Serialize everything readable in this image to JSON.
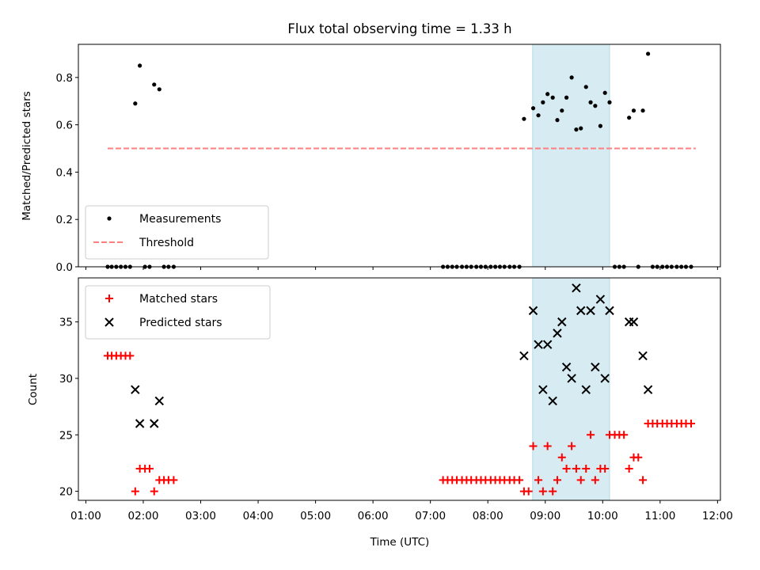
{
  "chart_data": [
    {
      "type": "scatter",
      "title": "Flux total observing time = 1.33 h",
      "ylabel": "Matched/Predicted stars",
      "xlabel": "",
      "x_unit": "hours UTC",
      "xlim": [
        0.87,
        12.05
      ],
      "ylim": [
        0,
        0.94
      ],
      "yticks": [
        0.0,
        0.2,
        0.4,
        0.6,
        0.8
      ],
      "ytick_labels": [
        "0.0",
        "0.2",
        "0.4",
        "0.6",
        "0.8"
      ],
      "grid": false,
      "legend_position": "lower-left",
      "highlight_span": {
        "x0": 8.78,
        "x1": 10.12,
        "color": "#add8e6"
      },
      "threshold": {
        "name": "Threshold",
        "y": 0.5,
        "x0": 1.38,
        "x1": 11.62,
        "color": "#ff7f7f",
        "style": "dashed"
      },
      "series": [
        {
          "name": "Measurements",
          "marker": "dot",
          "color": "#000000",
          "points": [
            [
              1.38,
              0
            ],
            [
              1.45,
              0
            ],
            [
              1.53,
              0
            ],
            [
              1.61,
              0
            ],
            [
              1.69,
              0
            ],
            [
              1.77,
              0
            ],
            [
              1.86,
              0.69
            ],
            [
              1.94,
              0.85
            ],
            [
              2.03,
              0
            ],
            [
              2.11,
              0
            ],
            [
              2.19,
              0.77
            ],
            [
              2.28,
              0.75
            ],
            [
              2.36,
              0
            ],
            [
              2.44,
              0
            ],
            [
              2.53,
              0
            ],
            [
              7.22,
              0
            ],
            [
              7.3,
              0
            ],
            [
              7.38,
              0
            ],
            [
              7.46,
              0
            ],
            [
              7.55,
              0
            ],
            [
              7.63,
              0
            ],
            [
              7.71,
              0
            ],
            [
              7.8,
              0
            ],
            [
              7.88,
              0
            ],
            [
              7.96,
              0
            ],
            [
              8.05,
              0
            ],
            [
              8.13,
              0
            ],
            [
              8.21,
              0
            ],
            [
              8.29,
              0
            ],
            [
              8.38,
              0
            ],
            [
              8.46,
              0
            ],
            [
              8.55,
              0
            ],
            [
              8.63,
              0.625
            ],
            [
              8.79,
              0.67
            ],
            [
              8.88,
              0.64
            ],
            [
              8.96,
              0.695
            ],
            [
              9.04,
              0.73
            ],
            [
              9.13,
              0.715
            ],
            [
              9.21,
              0.62
            ],
            [
              9.29,
              0.66
            ],
            [
              9.37,
              0.715
            ],
            [
              9.46,
              0.8
            ],
            [
              9.54,
              0.58
            ],
            [
              9.62,
              0.585
            ],
            [
              9.71,
              0.76
            ],
            [
              9.79,
              0.695
            ],
            [
              9.87,
              0.68
            ],
            [
              9.96,
              0.595
            ],
            [
              10.04,
              0.735
            ],
            [
              10.12,
              0.695
            ],
            [
              10.21,
              0
            ],
            [
              10.29,
              0
            ],
            [
              10.37,
              0
            ],
            [
              10.46,
              0.63
            ],
            [
              10.54,
              0.66
            ],
            [
              10.62,
              0
            ],
            [
              10.7,
              0.66
            ],
            [
              10.79,
              0.9
            ],
            [
              10.87,
              0
            ],
            [
              10.95,
              0
            ],
            [
              11.04,
              0
            ],
            [
              11.12,
              0
            ],
            [
              11.2,
              0
            ],
            [
              11.29,
              0
            ],
            [
              11.37,
              0
            ],
            [
              11.45,
              0
            ],
            [
              11.54,
              0
            ]
          ]
        }
      ]
    },
    {
      "type": "scatter",
      "title": "",
      "ylabel": "Count",
      "xlabel": "Time (UTC)",
      "x_unit": "hours UTC",
      "xlim": [
        0.87,
        12.05
      ],
      "ylim": [
        19.2,
        38.9
      ],
      "yticks": [
        20,
        25,
        30,
        35
      ],
      "ytick_labels": [
        "20",
        "25",
        "30",
        "35"
      ],
      "xticks": [
        1,
        2,
        3,
        4,
        5,
        6,
        7,
        8,
        9,
        10,
        11,
        12
      ],
      "xtick_labels": [
        "01:00",
        "02:00",
        "03:00",
        "04:00",
        "05:00",
        "06:00",
        "07:00",
        "08:00",
        "09:00",
        "10:00",
        "11:00",
        "12:00"
      ],
      "grid": false,
      "legend_position": "upper-left",
      "highlight_span": {
        "x0": 8.78,
        "x1": 10.12,
        "color": "#add8e6"
      },
      "series": [
        {
          "name": "Matched stars",
          "marker": "plus",
          "color": "#ff0000",
          "points": [
            [
              1.38,
              32
            ],
            [
              1.45,
              32
            ],
            [
              1.53,
              32
            ],
            [
              1.61,
              32
            ],
            [
              1.69,
              32
            ],
            [
              1.77,
              32
            ],
            [
              1.86,
              20
            ],
            [
              1.94,
              22
            ],
            [
              2.03,
              22
            ],
            [
              2.11,
              22
            ],
            [
              2.19,
              20
            ],
            [
              2.28,
              21
            ],
            [
              2.36,
              21
            ],
            [
              2.44,
              21
            ],
            [
              2.53,
              21
            ],
            [
              7.22,
              21
            ],
            [
              7.3,
              21
            ],
            [
              7.38,
              21
            ],
            [
              7.46,
              21
            ],
            [
              7.55,
              21
            ],
            [
              7.63,
              21
            ],
            [
              7.71,
              21
            ],
            [
              7.8,
              21
            ],
            [
              7.88,
              21
            ],
            [
              7.96,
              21
            ],
            [
              8.05,
              21
            ],
            [
              8.13,
              21
            ],
            [
              8.21,
              21
            ],
            [
              8.29,
              21
            ],
            [
              8.38,
              21
            ],
            [
              8.46,
              21
            ],
            [
              8.55,
              21
            ],
            [
              8.63,
              20
            ],
            [
              8.71,
              20
            ],
            [
              8.79,
              24
            ],
            [
              8.88,
              21
            ],
            [
              8.96,
              20
            ],
            [
              9.04,
              24
            ],
            [
              9.13,
              20
            ],
            [
              9.21,
              21
            ],
            [
              9.29,
              23
            ],
            [
              9.37,
              22
            ],
            [
              9.46,
              24
            ],
            [
              9.54,
              22
            ],
            [
              9.62,
              21
            ],
            [
              9.71,
              22
            ],
            [
              9.79,
              25
            ],
            [
              9.87,
              21
            ],
            [
              9.96,
              22
            ],
            [
              10.04,
              22
            ],
            [
              10.12,
              25
            ],
            [
              10.21,
              25
            ],
            [
              10.29,
              25
            ],
            [
              10.37,
              25
            ],
            [
              10.46,
              22
            ],
            [
              10.54,
              23
            ],
            [
              10.62,
              23
            ],
            [
              10.7,
              21
            ],
            [
              10.79,
              26
            ],
            [
              10.87,
              26
            ],
            [
              10.95,
              26
            ],
            [
              11.04,
              26
            ],
            [
              11.12,
              26
            ],
            [
              11.2,
              26
            ],
            [
              11.29,
              26
            ],
            [
              11.37,
              26
            ],
            [
              11.45,
              26
            ],
            [
              11.54,
              26
            ]
          ]
        },
        {
          "name": "Predicted stars",
          "marker": "x",
          "color": "#000000",
          "points": [
            [
              1.86,
              29
            ],
            [
              1.94,
              26
            ],
            [
              2.19,
              26
            ],
            [
              2.28,
              28
            ],
            [
              8.63,
              32
            ],
            [
              8.79,
              36
            ],
            [
              8.88,
              33
            ],
            [
              8.96,
              29
            ],
            [
              9.04,
              33
            ],
            [
              9.13,
              28
            ],
            [
              9.21,
              34
            ],
            [
              9.29,
              35
            ],
            [
              9.37,
              31
            ],
            [
              9.46,
              30
            ],
            [
              9.54,
              38
            ],
            [
              9.62,
              36
            ],
            [
              9.71,
              29
            ],
            [
              9.79,
              36
            ],
            [
              9.87,
              31
            ],
            [
              9.96,
              37
            ],
            [
              10.04,
              30
            ],
            [
              10.12,
              36
            ],
            [
              10.46,
              35
            ],
            [
              10.54,
              35
            ],
            [
              10.7,
              32
            ],
            [
              10.79,
              29
            ]
          ]
        }
      ]
    }
  ]
}
